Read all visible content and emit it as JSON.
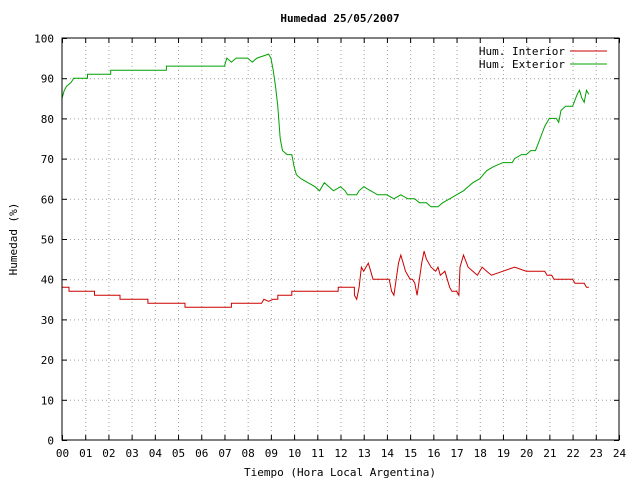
{
  "chart_data": {
    "type": "line",
    "title": "Humedad 25/05/2007",
    "xlabel": "Tiempo (Hora Local Argentina)",
    "ylabel": "Humedad (%)",
    "xlim": [
      0,
      24
    ],
    "ylim": [
      0,
      100
    ],
    "x_ticks": [
      "00",
      "01",
      "02",
      "03",
      "04",
      "05",
      "06",
      "07",
      "08",
      "09",
      "10",
      "11",
      "12",
      "13",
      "14",
      "15",
      "16",
      "17",
      "18",
      "19",
      "20",
      "21",
      "22",
      "23",
      "24"
    ],
    "y_ticks": [
      0,
      10,
      20,
      30,
      40,
      50,
      60,
      70,
      80,
      90,
      100
    ],
    "grid": true,
    "legend_position": "top-right",
    "series": [
      {
        "name": "Hum. Interior",
        "color": "#cc0000",
        "points": [
          [
            0.0,
            38
          ],
          [
            0.3,
            38
          ],
          [
            0.3,
            37
          ],
          [
            1.4,
            37
          ],
          [
            1.4,
            36
          ],
          [
            2.5,
            36
          ],
          [
            2.5,
            35
          ],
          [
            3.7,
            35
          ],
          [
            3.7,
            34
          ],
          [
            5.3,
            34
          ],
          [
            5.3,
            33
          ],
          [
            7.3,
            33
          ],
          [
            7.3,
            34
          ],
          [
            8.6,
            34
          ],
          [
            8.7,
            35
          ],
          [
            8.9,
            34.5
          ],
          [
            9.1,
            35
          ],
          [
            9.3,
            35
          ],
          [
            9.3,
            36
          ],
          [
            9.9,
            36
          ],
          [
            9.9,
            37
          ],
          [
            11.9,
            37
          ],
          [
            11.9,
            38
          ],
          [
            12.6,
            38
          ],
          [
            12.6,
            36
          ],
          [
            12.7,
            35
          ],
          [
            12.8,
            38
          ],
          [
            12.9,
            43
          ],
          [
            13.0,
            42
          ],
          [
            13.1,
            43
          ],
          [
            13.2,
            44
          ],
          [
            13.3,
            42
          ],
          [
            13.4,
            40
          ],
          [
            14.1,
            40
          ],
          [
            14.2,
            37
          ],
          [
            14.3,
            36
          ],
          [
            14.4,
            40
          ],
          [
            14.5,
            44
          ],
          [
            14.6,
            46
          ],
          [
            14.7,
            44
          ],
          [
            14.8,
            42
          ],
          [
            14.9,
            41
          ],
          [
            15.0,
            40
          ],
          [
            15.1,
            40
          ],
          [
            15.2,
            39
          ],
          [
            15.3,
            36
          ],
          [
            15.4,
            40
          ],
          [
            15.5,
            44
          ],
          [
            15.6,
            47
          ],
          [
            15.7,
            45
          ],
          [
            15.9,
            43
          ],
          [
            16.1,
            42
          ],
          [
            16.2,
            43
          ],
          [
            16.3,
            41
          ],
          [
            16.5,
            42
          ],
          [
            16.7,
            38
          ],
          [
            16.8,
            37
          ],
          [
            17.0,
            37
          ],
          [
            17.1,
            36
          ],
          [
            17.15,
            43
          ],
          [
            17.3,
            46
          ],
          [
            17.5,
            43
          ],
          [
            17.7,
            42
          ],
          [
            17.9,
            41
          ],
          [
            18.1,
            43
          ],
          [
            18.3,
            42
          ],
          [
            18.5,
            41
          ],
          [
            19.0,
            42
          ],
          [
            19.5,
            43
          ],
          [
            20.0,
            42
          ],
          [
            20.8,
            42
          ],
          [
            20.9,
            41
          ],
          [
            21.1,
            41
          ],
          [
            21.2,
            40
          ],
          [
            22.0,
            40
          ],
          [
            22.1,
            39
          ],
          [
            22.5,
            39
          ],
          [
            22.6,
            38
          ],
          [
            22.7,
            38
          ]
        ]
      },
      {
        "name": "Hum. Exterior",
        "color": "#00a000",
        "points": [
          [
            0.0,
            85
          ],
          [
            0.1,
            87
          ],
          [
            0.2,
            88
          ],
          [
            0.4,
            89
          ],
          [
            0.5,
            90
          ],
          [
            1.1,
            90
          ],
          [
            1.1,
            91
          ],
          [
            2.1,
            91
          ],
          [
            2.1,
            92
          ],
          [
            3.0,
            92
          ],
          [
            3.0,
            92
          ],
          [
            4.5,
            92
          ],
          [
            4.5,
            93
          ],
          [
            6.3,
            93
          ],
          [
            6.3,
            93
          ],
          [
            7.0,
            93
          ],
          [
            7.1,
            95
          ],
          [
            7.3,
            94
          ],
          [
            7.5,
            95
          ],
          [
            8.0,
            95
          ],
          [
            8.2,
            94
          ],
          [
            8.4,
            95
          ],
          [
            8.9,
            96
          ],
          [
            9.0,
            95
          ],
          [
            9.1,
            92
          ],
          [
            9.2,
            88
          ],
          [
            9.3,
            83
          ],
          [
            9.4,
            75
          ],
          [
            9.5,
            72
          ],
          [
            9.7,
            71
          ],
          [
            9.9,
            71
          ],
          [
            10.0,
            68
          ],
          [
            10.1,
            66
          ],
          [
            10.3,
            65
          ],
          [
            10.6,
            64
          ],
          [
            10.9,
            63
          ],
          [
            11.1,
            62
          ],
          [
            11.3,
            64
          ],
          [
            11.5,
            63
          ],
          [
            11.7,
            62
          ],
          [
            12.0,
            63
          ],
          [
            12.2,
            62
          ],
          [
            12.3,
            61
          ],
          [
            12.7,
            61
          ],
          [
            12.8,
            62
          ],
          [
            13.0,
            63
          ],
          [
            13.3,
            62
          ],
          [
            13.6,
            61
          ],
          [
            14.0,
            61
          ],
          [
            14.3,
            60
          ],
          [
            14.6,
            61
          ],
          [
            14.9,
            60
          ],
          [
            15.2,
            60
          ],
          [
            15.4,
            59
          ],
          [
            15.7,
            59
          ],
          [
            15.9,
            58
          ],
          [
            16.0,
            58
          ],
          [
            16.2,
            58
          ],
          [
            16.4,
            59
          ],
          [
            16.7,
            60
          ],
          [
            17.0,
            61
          ],
          [
            17.3,
            62
          ],
          [
            17.5,
            63
          ],
          [
            17.7,
            64
          ],
          [
            18.0,
            65
          ],
          [
            18.3,
            67
          ],
          [
            18.6,
            68
          ],
          [
            19.0,
            69
          ],
          [
            19.4,
            69
          ],
          [
            19.5,
            70
          ],
          [
            19.8,
            71
          ],
          [
            20.0,
            71
          ],
          [
            20.2,
            72
          ],
          [
            20.4,
            72
          ],
          [
            20.6,
            75
          ],
          [
            20.8,
            78
          ],
          [
            21.0,
            80
          ],
          [
            21.3,
            80
          ],
          [
            21.4,
            79
          ],
          [
            21.5,
            82
          ],
          [
            21.7,
            83
          ],
          [
            22.0,
            83
          ],
          [
            22.2,
            86
          ],
          [
            22.3,
            87
          ],
          [
            22.4,
            85
          ],
          [
            22.5,
            84
          ],
          [
            22.6,
            87
          ],
          [
            22.7,
            86
          ]
        ]
      }
    ]
  }
}
